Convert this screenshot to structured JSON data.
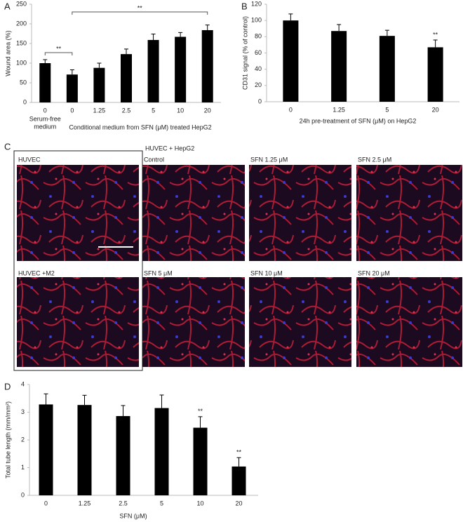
{
  "chart_data": [
    {
      "type": "bar",
      "panel": "A",
      "ylabel": "Wound area (%)",
      "xlabel": "Conditional medium from SFN (μM) treated HepG2",
      "categories": [
        "0",
        "0",
        "1.25",
        "2.5",
        "5",
        "10",
        "20"
      ],
      "category_note": [
        "Serum-free",
        "medium"
      ],
      "values": [
        100,
        71,
        88,
        123,
        159,
        167,
        184
      ],
      "errors": [
        9,
        12,
        12,
        13,
        15,
        11,
        13
      ],
      "color": "#000000",
      "ylim": [
        0,
        250
      ],
      "yticks": [
        0,
        50,
        100,
        150,
        200,
        250
      ],
      "significance": [
        "**",
        "**"
      ]
    },
    {
      "type": "bar",
      "panel": "B",
      "ylabel": "CD31 signal (% of control)",
      "xlabel": "24h pre-treatment of SFN (μM) on HepG2",
      "categories": [
        "0",
        "1.25",
        "5",
        "20"
      ],
      "values": [
        100,
        87,
        81,
        67
      ],
      "errors": [
        8,
        8,
        7,
        9
      ],
      "color": "#000000",
      "marks": [
        null,
        null,
        null,
        "**"
      ],
      "ylim": [
        0,
        120
      ],
      "yticks": [
        0,
        20,
        40,
        60,
        80,
        100,
        120
      ]
    },
    {
      "type": "bar",
      "panel": "D",
      "ylabel": "Total tube length (mm/mm²)",
      "xlabel": "SFN (μM)",
      "categories": [
        "0",
        "1.25",
        "2.5",
        "5",
        "10",
        "20"
      ],
      "values": [
        3.28,
        3.26,
        2.86,
        3.15,
        2.44,
        1.04
      ],
      "errors": [
        0.38,
        0.35,
        0.38,
        0.47,
        0.4,
        0.32
      ],
      "color": "#000000",
      "marks": [
        null,
        null,
        null,
        null,
        "**",
        "**"
      ],
      "ylim": [
        0,
        4
      ],
      "yticks": [
        0,
        1,
        2,
        3,
        4
      ]
    }
  ],
  "image_panel": {
    "panel": "C",
    "header": "HUVEC + HepG2",
    "images": [
      "HUVEC",
      "Control",
      "SFN 1.25 μM",
      "SFN 2.5 μM",
      "HUVEC +M2",
      "SFN 5 μM",
      "SFN 10 μM",
      "SFN 20 μM"
    ]
  }
}
